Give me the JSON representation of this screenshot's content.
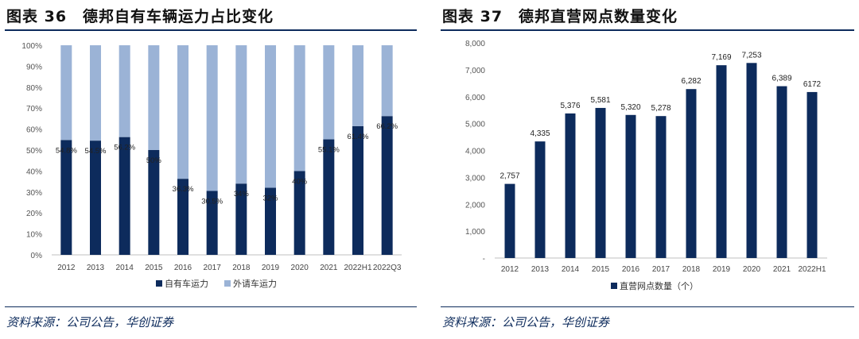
{
  "left": {
    "title": "图表 36　德邦自有车辆运力占比变化",
    "source": "资料来源：公司公告，华创证券",
    "chart_data": {
      "type": "bar",
      "stacked": true,
      "categories": [
        "2012",
        "2013",
        "2014",
        "2015",
        "2016",
        "2017",
        "2018",
        "2019",
        "2020",
        "2021",
        "2022H1",
        "2022Q3"
      ],
      "series": [
        {
          "name": "自有车运力",
          "values": [
            54.8,
            54.5,
            56.2,
            50.0,
            36.3,
            30.5,
            34.0,
            32.0,
            40.0,
            55.1,
            61.4,
            66.2
          ],
          "color": "#0d2b5c"
        },
        {
          "name": "外请车运力",
          "values": [
            45.2,
            45.5,
            43.8,
            50.0,
            63.7,
            69.5,
            66.0,
            68.0,
            60.0,
            44.9,
            38.6,
            33.8
          ],
          "color": "#9bb3d6"
        }
      ],
      "data_labels": [
        "54.8%",
        "54.5%",
        "56.2%",
        "50%",
        "36.3%",
        "30.5%",
        "34%",
        "32%",
        "40%",
        "55.1%",
        "61.4%",
        "66.2%"
      ],
      "yticks": [
        "0%",
        "10%",
        "20%",
        "30%",
        "40%",
        "50%",
        "60%",
        "70%",
        "80%",
        "90%",
        "100%"
      ],
      "ylim": [
        0,
        100
      ],
      "legend_position": "bottom",
      "grid": false
    }
  },
  "right": {
    "title": "图表 37　德邦直营网点数量变化",
    "source": "资料来源：公司公告，华创证券",
    "chart_data": {
      "type": "bar",
      "categories": [
        "2012",
        "2013",
        "2014",
        "2015",
        "2016",
        "2017",
        "2018",
        "2019",
        "2020",
        "2021",
        "2022H1"
      ],
      "series": [
        {
          "name": "直营网点数量（个）",
          "values": [
            2757,
            4335,
            5376,
            5581,
            5320,
            5278,
            6282,
            7169,
            7253,
            6389,
            6172
          ],
          "color": "#0d2b5c"
        }
      ],
      "data_labels": [
        "2,757",
        "4,335",
        "5,376",
        "5,581",
        "5,320",
        "5,278",
        "6,282",
        "7,169",
        "7,253",
        "6,389",
        "6172"
      ],
      "yticks": [
        "-",
        "1,000",
        "2,000",
        "3,000",
        "4,000",
        "5,000",
        "6,000",
        "7,000",
        "8,000"
      ],
      "ylim": [
        0,
        8000
      ],
      "legend_position": "bottom",
      "grid": false
    }
  }
}
